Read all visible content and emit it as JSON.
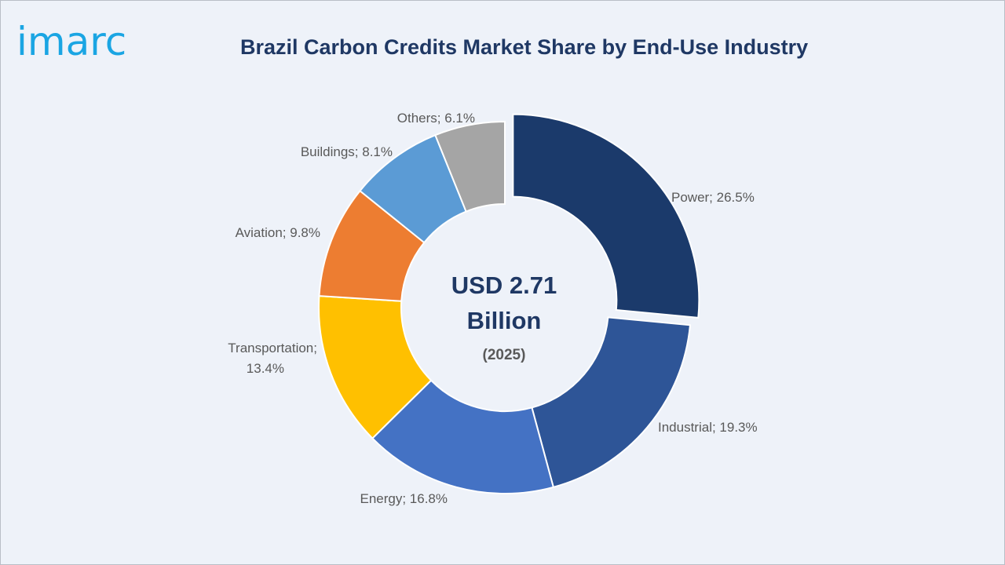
{
  "brand": {
    "logo_text": "imarc"
  },
  "chart_data": {
    "type": "pie",
    "donut": true,
    "title": "Brazil Carbon Credits Market Share by End-Use Industry",
    "center": {
      "value_line1": "USD 2.71",
      "value_line2": "Billion",
      "year": "(2025)"
    },
    "slices": [
      {
        "label": "Power",
        "value": 26.5,
        "label_text": [
          "Power; 26.5%"
        ],
        "color": "#1b3a6b",
        "exploded": true
      },
      {
        "label": "Industrial",
        "value": 19.3,
        "label_text": [
          "Industrial; 19.3%"
        ],
        "color": "#2e5597"
      },
      {
        "label": "Energy",
        "value": 16.8,
        "label_text": [
          "Energy; 16.8%"
        ],
        "color": "#4472c4"
      },
      {
        "label": "Transportation",
        "value": 13.4,
        "label_text": [
          "Transportation;",
          "13.4%"
        ],
        "color": "#ffc000"
      },
      {
        "label": "Aviation",
        "value": 9.8,
        "label_text": [
          "Aviation; 9.8%"
        ],
        "color": "#ed7d31"
      },
      {
        "label": "Buildings",
        "value": 8.1,
        "label_text": [
          "Buildings; 8.1%"
        ],
        "color": "#5b9bd5"
      },
      {
        "label": "Others",
        "value": 6.1,
        "label_text": [
          "Others; 6.1%"
        ],
        "color": "#a5a5a5"
      }
    ]
  }
}
